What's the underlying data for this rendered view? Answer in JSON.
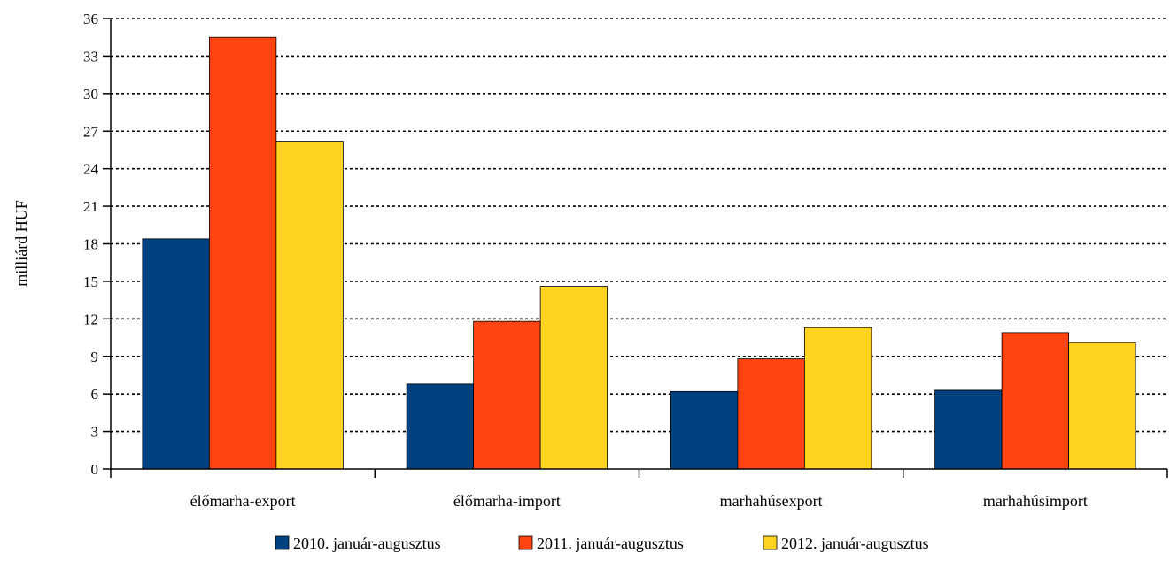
{
  "chart_data": {
    "type": "bar",
    "ylabel": "milliárd HUF",
    "ylim": [
      0,
      36
    ],
    "yticks": [
      0,
      3,
      6,
      9,
      12,
      15,
      18,
      21,
      24,
      27,
      30,
      33,
      36
    ],
    "grid": "horizontal dotted",
    "legend_position": "bottom",
    "categories": [
      "élőmarha-export",
      "élőmarha-import",
      "marhahúsexport",
      "marhahúsimport"
    ],
    "series": [
      {
        "name": "2010. január-augusztus",
        "color": "#00427F",
        "values": [
          18.4,
          6.8,
          6.2,
          6.3
        ]
      },
      {
        "name": "2011. január-augusztus",
        "color": "#FF4411",
        "values": [
          34.5,
          11.8,
          8.8,
          10.9
        ]
      },
      {
        "name": "2012. január-augusztus",
        "color": "#FFD320",
        "values": [
          26.2,
          14.6,
          11.3,
          10.1
        ]
      }
    ]
  }
}
